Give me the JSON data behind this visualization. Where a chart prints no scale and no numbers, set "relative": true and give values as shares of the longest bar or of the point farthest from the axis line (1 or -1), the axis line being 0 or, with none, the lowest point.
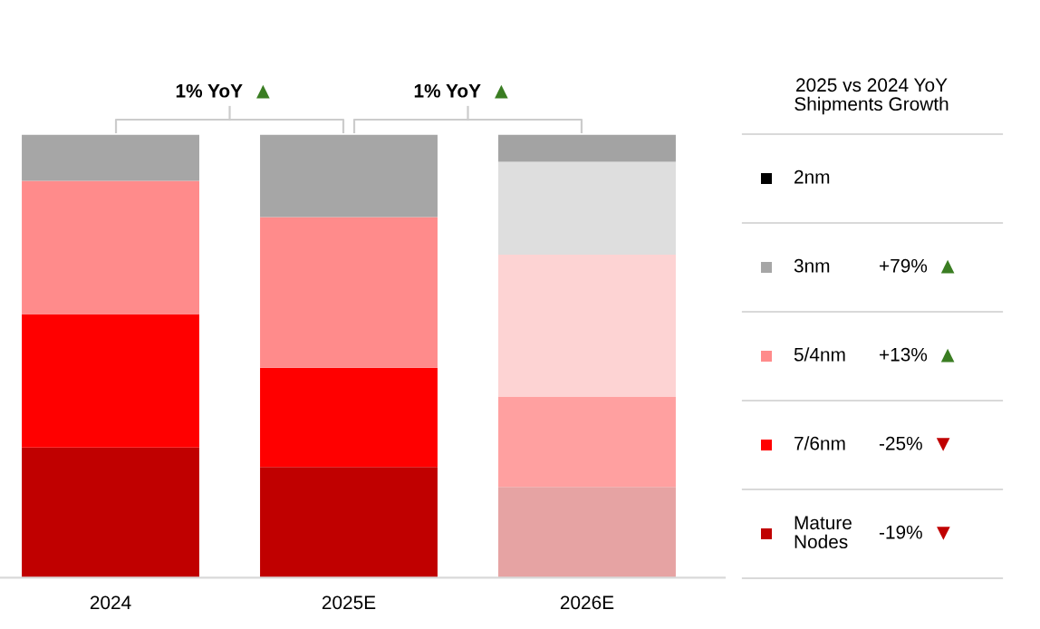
{
  "chart_data": {
    "type": "bar",
    "stacked": true,
    "relative": true,
    "categories": [
      "2024",
      "2025E",
      "2026E"
    ],
    "legend_title": "2025 vs 2024 YoY Shipments Growth",
    "legend": "right",
    "grid": false,
    "series": [
      {
        "name": "Mature Nodes",
        "colors": [
          "#c00000",
          "#c00000",
          "#e6a3a3"
        ],
        "values": [
          0.294,
          0.25,
          0.205
        ]
      },
      {
        "name": "7/6nm",
        "colors": [
          "#ff0000",
          "#ff0000",
          "#ffa0a0"
        ],
        "values": [
          0.3,
          0.224,
          0.204
        ]
      },
      {
        "name": "5/4nm",
        "colors": [
          "#ff8b8b",
          "#ff8b8b",
          "#fdd3d3"
        ],
        "values": [
          0.302,
          0.34,
          0.32
        ]
      },
      {
        "name": "3nm",
        "colors": [
          "#a6a6a6",
          "#a6a6a6",
          "#dedede"
        ],
        "values": [
          0.104,
          0.186,
          0.21
        ]
      },
      {
        "name": "2nm",
        "colors": [
          "#000000",
          "#000000",
          "#a3a3a3"
        ],
        "values": [
          0,
          0,
          0.061
        ]
      }
    ],
    "annotations": [
      "1% YoY ▲",
      "1% YoY ▲",
      "+79% ▲",
      "+13% ▲",
      "-25% ▼",
      "-19% ▼"
    ]
  }
}
